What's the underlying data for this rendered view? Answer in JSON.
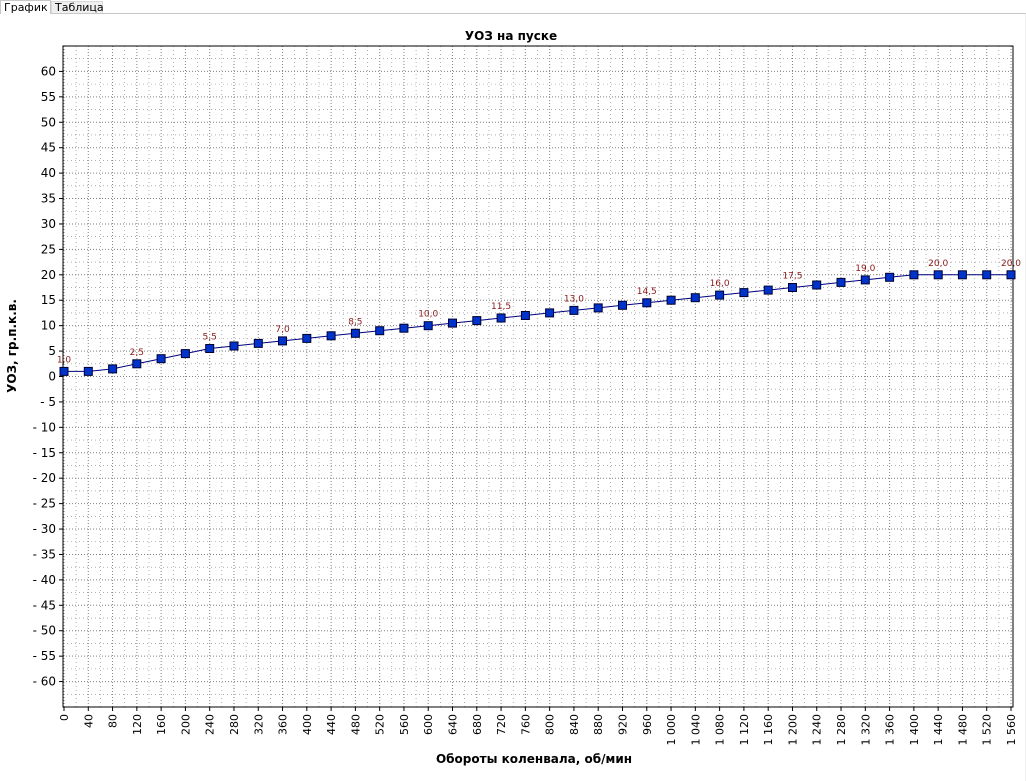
{
  "tabs": [
    {
      "label": "График",
      "active": true
    },
    {
      "label": "Таблица",
      "active": false
    }
  ],
  "chart_data": {
    "type": "line",
    "title": "УОЗ на пуске",
    "xlabel": "Обороты коленвала, об/мин",
    "ylabel": "УОЗ, гр.п.к.в.",
    "xlim": [
      0,
      1560
    ],
    "ylim": [
      -65,
      65
    ],
    "grid": true,
    "legend": "none",
    "colors": {
      "line": "#000080",
      "marker": "#0033cc",
      "label": "#8b1a1a",
      "grid": "#808080"
    },
    "y_ticks": [
      "60",
      "55",
      "50",
      "45",
      "40",
      "35",
      "30",
      "25",
      "20",
      "15",
      "10",
      "5",
      "0",
      "- 5",
      "- 10",
      "- 15",
      "- 20",
      "- 25",
      "- 30",
      "- 35",
      "- 40",
      "- 45",
      "- 50",
      "- 55",
      "- 60"
    ],
    "x_ticks": [
      "0",
      "40",
      "80",
      "120",
      "160",
      "200",
      "240",
      "280",
      "320",
      "360",
      "400",
      "440",
      "480",
      "520",
      "560",
      "600",
      "640",
      "680",
      "720",
      "760",
      "800",
      "840",
      "880",
      "920",
      "960",
      "1 000",
      "1 040",
      "1 080",
      "1 120",
      "1 160",
      "1 200",
      "1 240",
      "1 280",
      "1 320",
      "1 360",
      "1 400",
      "1 440",
      "1 480",
      "1 520",
      "1 560"
    ],
    "x": [
      0,
      40,
      80,
      120,
      160,
      200,
      240,
      280,
      320,
      360,
      400,
      440,
      480,
      520,
      560,
      600,
      640,
      680,
      720,
      760,
      800,
      840,
      880,
      920,
      960,
      1000,
      1040,
      1080,
      1120,
      1160,
      1200,
      1240,
      1280,
      1320,
      1360,
      1400,
      1440,
      1480,
      1520,
      1560
    ],
    "values": [
      1.0,
      1.0,
      1.5,
      2.5,
      3.5,
      4.5,
      5.5,
      6.0,
      6.5,
      7.0,
      7.5,
      8.0,
      8.5,
      9.0,
      9.5,
      10.0,
      10.5,
      11.0,
      11.5,
      12.0,
      12.5,
      13.0,
      13.5,
      14.0,
      14.5,
      15.0,
      15.5,
      16.0,
      16.5,
      17.0,
      17.5,
      18.0,
      18.5,
      19.0,
      19.5,
      20.0,
      20.0,
      20.0,
      20.0,
      20.0
    ],
    "data_labels": [
      {
        "x": 0,
        "text": "1,0"
      },
      {
        "x": 120,
        "text": "2,5"
      },
      {
        "x": 240,
        "text": "5,5"
      },
      {
        "x": 360,
        "text": "7,0"
      },
      {
        "x": 480,
        "text": "8,5"
      },
      {
        "x": 600,
        "text": "10,0"
      },
      {
        "x": 720,
        "text": "11,5"
      },
      {
        "x": 840,
        "text": "13,0"
      },
      {
        "x": 960,
        "text": "14,5"
      },
      {
        "x": 1080,
        "text": "16,0"
      },
      {
        "x": 1200,
        "text": "17,5"
      },
      {
        "x": 1320,
        "text": "19,0"
      },
      {
        "x": 1440,
        "text": "20,0"
      },
      {
        "x": 1560,
        "text": "20,0"
      }
    ]
  }
}
